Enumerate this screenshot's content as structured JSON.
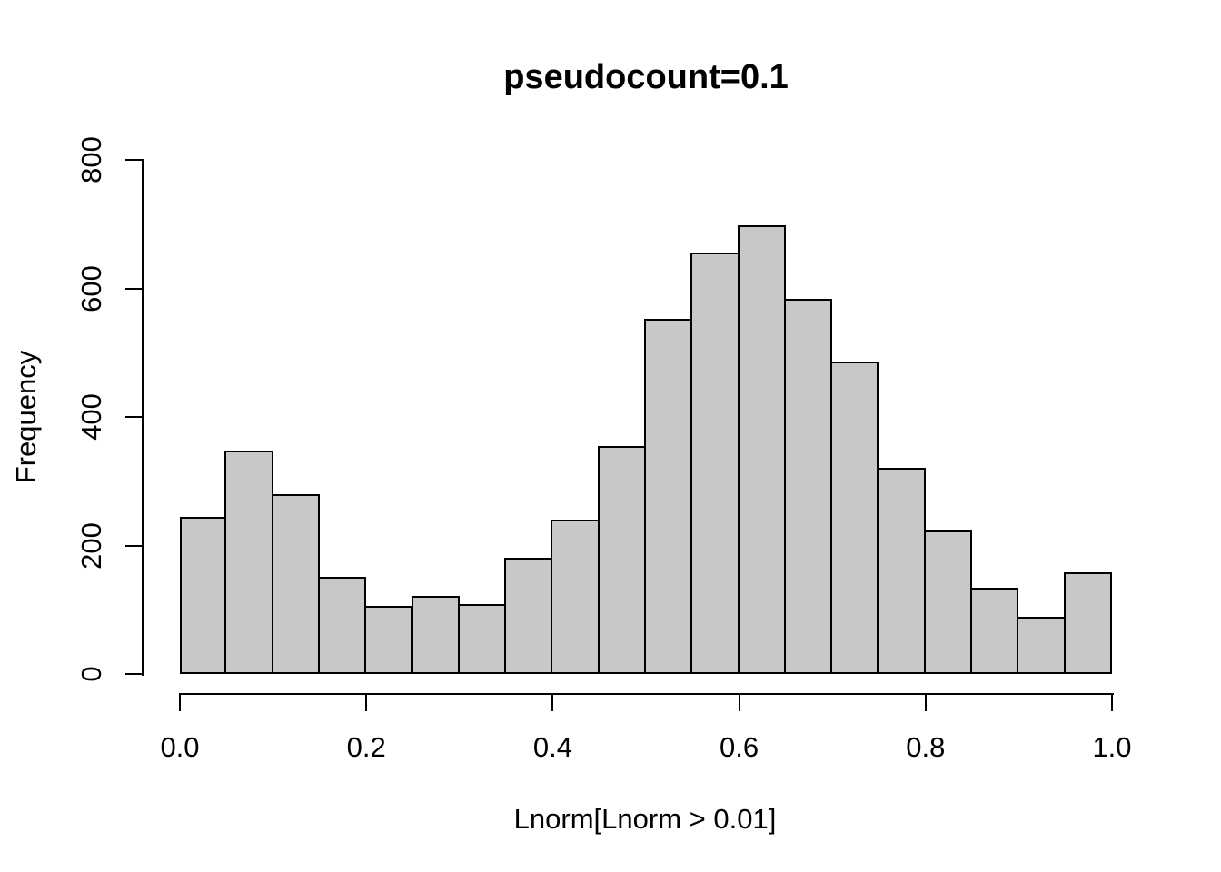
{
  "title": "pseudocount=0.1",
  "chart_data": {
    "type": "bar",
    "subtype": "histogram",
    "title": "pseudocount=0.1",
    "xlabel": "Lnorm[Lnorm > 0.01]",
    "ylabel": "Frequency",
    "xlim": [
      0.0,
      1.0
    ],
    "ylim": [
      0,
      800
    ],
    "bin_width": 0.05,
    "bin_edges": [
      0.0,
      0.05,
      0.1,
      0.15,
      0.2,
      0.25,
      0.3,
      0.35,
      0.4,
      0.45,
      0.5,
      0.55,
      0.6,
      0.65,
      0.7,
      0.75,
      0.8,
      0.85,
      0.9,
      0.95,
      1.0
    ],
    "values": [
      245,
      348,
      280,
      151,
      106,
      121,
      109,
      181,
      240,
      355,
      552,
      656,
      698,
      584,
      486,
      321,
      223,
      134,
      89,
      158
    ],
    "x_ticks": [
      "0.0",
      "0.2",
      "0.4",
      "0.6",
      "0.8",
      "1.0"
    ],
    "y_ticks": [
      "0",
      "200",
      "400",
      "600",
      "800"
    ],
    "grid": false,
    "legend": null,
    "bar_fill": "#c8c8c8",
    "bar_border": "#000000",
    "background": "#ffffff"
  }
}
